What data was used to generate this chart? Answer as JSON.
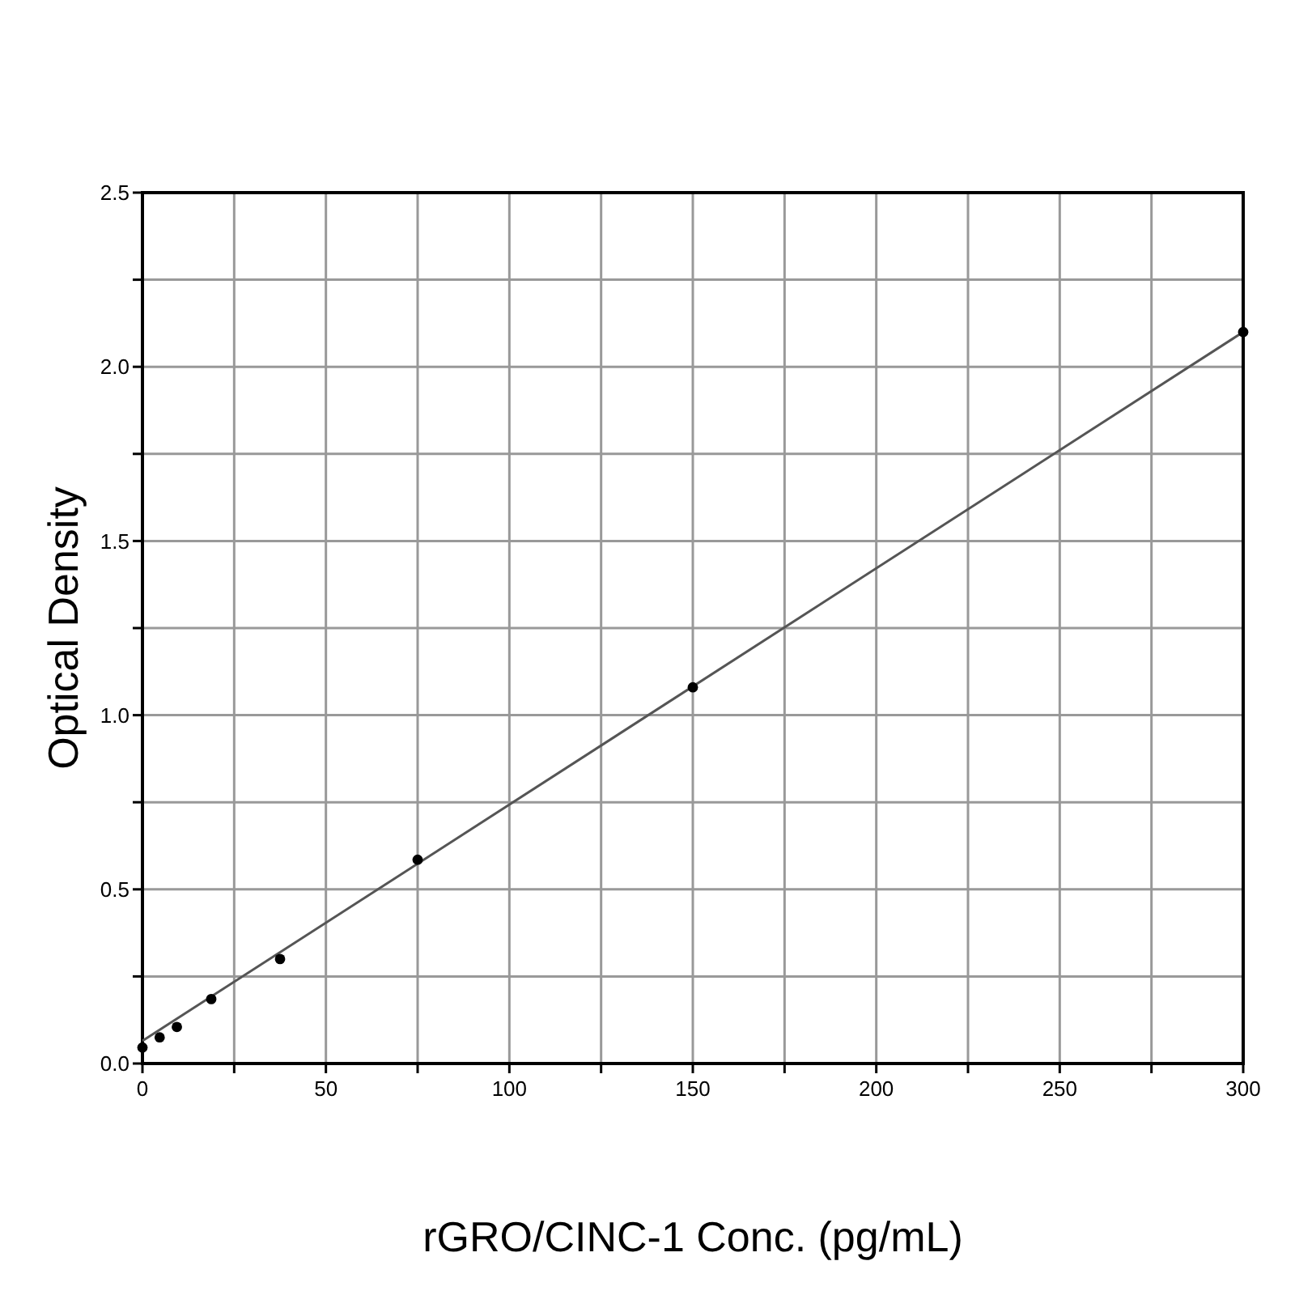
{
  "chart_data": {
    "type": "scatter",
    "xlabel": "rGRO/CINC-1 Conc. (pg/mL)",
    "ylabel": "Optical Density",
    "xlim": [
      0,
      300
    ],
    "ylim": [
      0,
      2.5
    ],
    "xticks": [
      0,
      {
        "value": 25,
        "label": null
      },
      50,
      {
        "value": 75,
        "label": null
      },
      100,
      {
        "value": 125,
        "label": null
      },
      150,
      {
        "value": 175,
        "label": null
      },
      200,
      {
        "value": 225,
        "label": null
      },
      250,
      {
        "value": 275,
        "label": null
      },
      300
    ],
    "yticks": [
      {
        "value": 0,
        "label": "0.0"
      },
      {
        "value": 0.25,
        "label": null
      },
      {
        "value": 0.5,
        "label": "0.5"
      },
      {
        "value": 0.75,
        "label": null
      },
      {
        "value": 1,
        "label": "1.0"
      },
      {
        "value": 1.25,
        "label": null
      },
      {
        "value": 1.5,
        "label": "1.5"
      },
      {
        "value": 1.75,
        "label": null
      },
      {
        "value": 2,
        "label": "2.0"
      },
      {
        "value": 2.25,
        "label": null
      },
      {
        "value": 2.5,
        "label": "2.5"
      }
    ],
    "grid": true,
    "marker": "circle",
    "series": [
      {
        "type": "line",
        "color": "#555555",
        "x": [
          0,
          300
        ],
        "values": [
          0.065,
          2.1
        ],
        "marker": "none",
        "line_style": "solid"
      },
      {
        "color": "#000000",
        "x": [
          0,
          4.69,
          9.38,
          18.75,
          37.5,
          75,
          150,
          300
        ],
        "values": [
          0.046,
          0.075,
          0.105,
          0.185,
          0.3,
          0.585,
          1.08,
          2.1
        ]
      }
    ]
  }
}
